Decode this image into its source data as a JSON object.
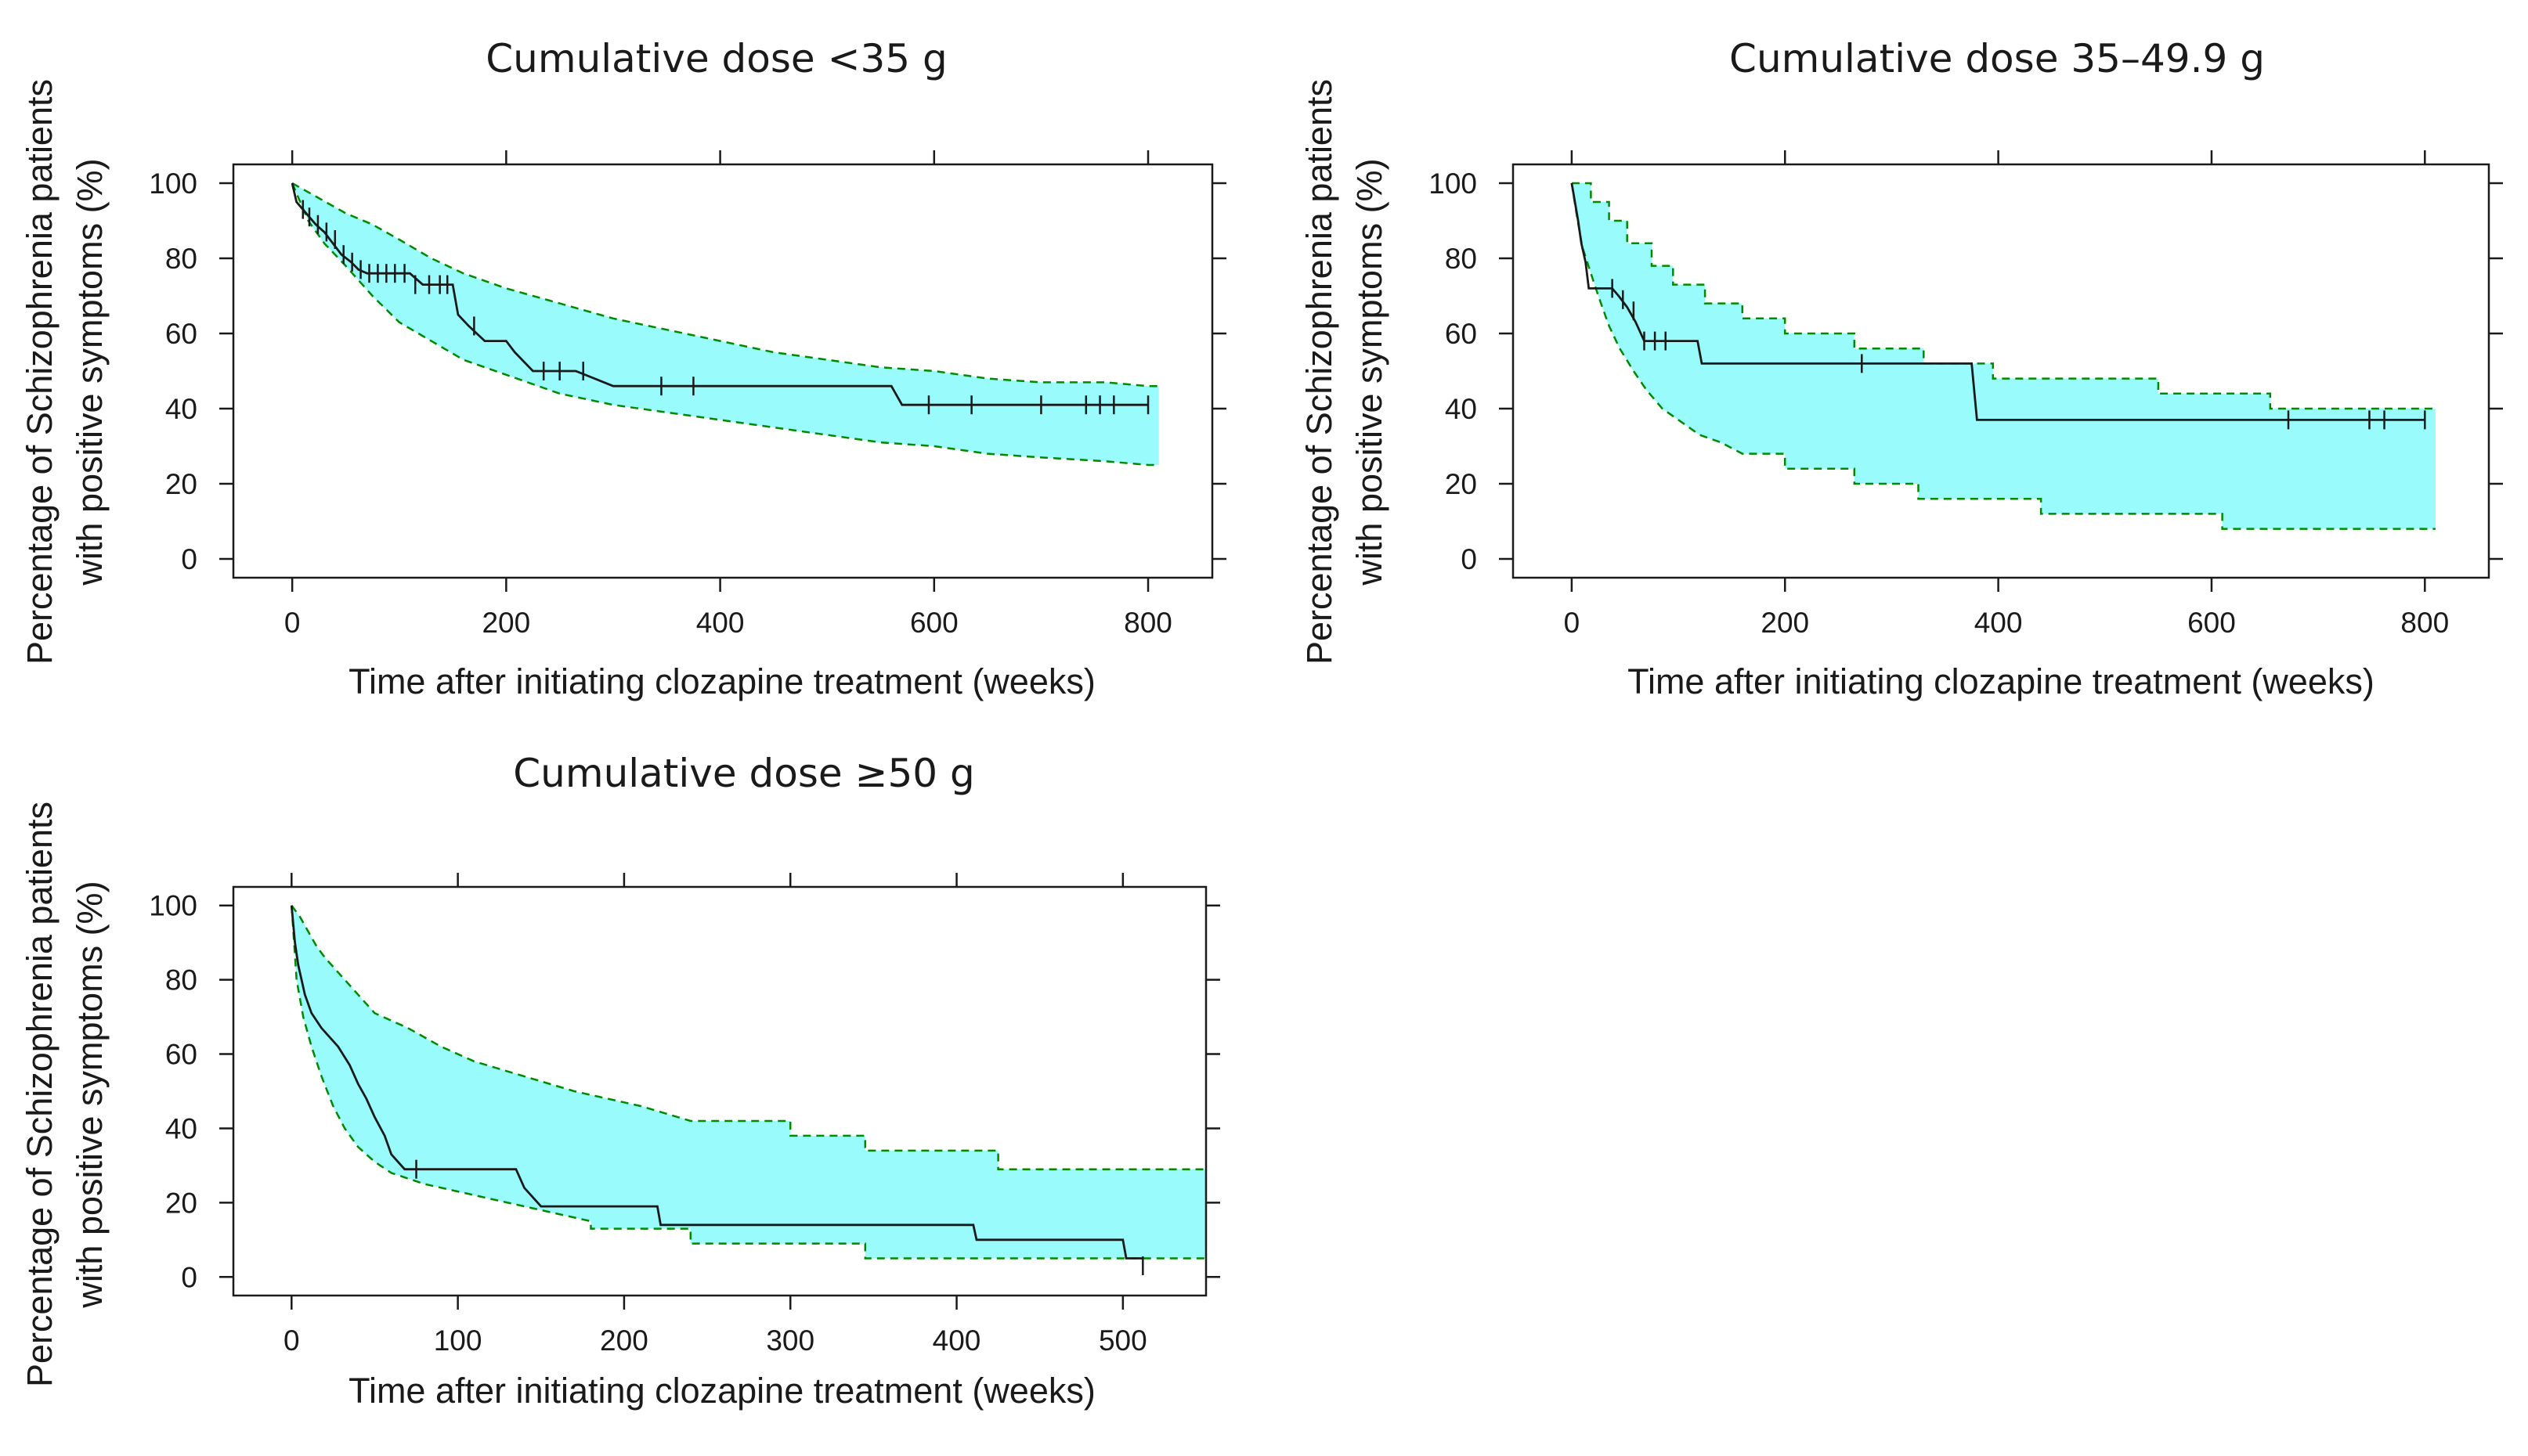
{
  "colors": {
    "band_fill": "#99fbfb",
    "band_edge": "#008a00",
    "line": "#1a1a1a",
    "frame": "#1a1a1a"
  },
  "chart_data": [
    {
      "type": "line",
      "title": "Cumulative dose <35 g",
      "xlabel": "Time after initiating clozapine treatment (weeks)",
      "ylabel_line1": "Percentage of Schizophrenia patients",
      "ylabel_line2": "with positive symptoms (%)",
      "xlim": [
        -55,
        860
      ],
      "ylim": [
        -5,
        105
      ],
      "x_ticks": [
        0,
        200,
        400,
        600,
        800
      ],
      "y_ticks": [
        0,
        20,
        40,
        60,
        80,
        100
      ],
      "survival": [
        [
          0,
          100
        ],
        [
          4,
          95
        ],
        [
          10,
          93
        ],
        [
          16,
          91
        ],
        [
          22,
          89
        ],
        [
          30,
          87
        ],
        [
          38,
          84
        ],
        [
          46,
          81
        ],
        [
          55,
          79
        ],
        [
          62,
          77
        ],
        [
          70,
          76
        ],
        [
          80,
          76
        ],
        [
          110,
          76
        ],
        [
          122,
          73
        ],
        [
          150,
          73
        ],
        [
          155,
          65
        ],
        [
          165,
          62
        ],
        [
          180,
          58
        ],
        [
          200,
          58
        ],
        [
          208,
          55
        ],
        [
          225,
          50
        ],
        [
          265,
          50
        ],
        [
          300,
          46
        ],
        [
          340,
          46
        ],
        [
          560,
          46
        ],
        [
          570,
          41
        ],
        [
          800,
          41
        ]
      ],
      "censored": [
        [
          10,
          93
        ],
        [
          16,
          91
        ],
        [
          24,
          89
        ],
        [
          32,
          87
        ],
        [
          40,
          85
        ],
        [
          48,
          81
        ],
        [
          56,
          79
        ],
        [
          64,
          77
        ],
        [
          72,
          76
        ],
        [
          80,
          76
        ],
        [
          88,
          76
        ],
        [
          96,
          76
        ],
        [
          105,
          76
        ],
        [
          115,
          73
        ],
        [
          128,
          73
        ],
        [
          138,
          73
        ],
        [
          145,
          73
        ],
        [
          170,
          62
        ],
        [
          235,
          50
        ],
        [
          250,
          50
        ],
        [
          272,
          50
        ],
        [
          345,
          46
        ],
        [
          375,
          46
        ],
        [
          595,
          41
        ],
        [
          635,
          41
        ],
        [
          700,
          41
        ],
        [
          742,
          41
        ],
        [
          755,
          41
        ],
        [
          768,
          41
        ],
        [
          800,
          41
        ]
      ],
      "upper": [
        [
          0,
          100
        ],
        [
          25,
          96
        ],
        [
          50,
          92
        ],
        [
          75,
          89
        ],
        [
          100,
          85
        ],
        [
          130,
          80
        ],
        [
          160,
          76
        ],
        [
          200,
          72
        ],
        [
          250,
          68
        ],
        [
          300,
          64
        ],
        [
          350,
          61
        ],
        [
          400,
          58
        ],
        [
          450,
          55
        ],
        [
          500,
          53
        ],
        [
          550,
          51
        ],
        [
          600,
          50
        ],
        [
          650,
          48
        ],
        [
          700,
          47
        ],
        [
          760,
          47
        ],
        [
          800,
          46
        ],
        [
          810,
          46
        ]
      ],
      "lower": [
        [
          0,
          100
        ],
        [
          15,
          90
        ],
        [
          30,
          84
        ],
        [
          50,
          78
        ],
        [
          75,
          70
        ],
        [
          100,
          63
        ],
        [
          130,
          58
        ],
        [
          160,
          53
        ],
        [
          200,
          49
        ],
        [
          250,
          44
        ],
        [
          300,
          41
        ],
        [
          350,
          39
        ],
        [
          400,
          37
        ],
        [
          450,
          35
        ],
        [
          500,
          33
        ],
        [
          550,
          31
        ],
        [
          600,
          30
        ],
        [
          650,
          28
        ],
        [
          700,
          27
        ],
        [
          760,
          26
        ],
        [
          800,
          25
        ],
        [
          810,
          25
        ]
      ]
    },
    {
      "type": "line",
      "title": "Cumulative dose 35–49.9 g",
      "xlabel": "Time after initiating clozapine treatment (weeks)",
      "ylabel_line1": "Percentage of Schizophrenia patients",
      "ylabel_line2": "with positive symptoms (%)",
      "xlim": [
        -55,
        860
      ],
      "ylim": [
        -5,
        105
      ],
      "x_ticks": [
        0,
        200,
        400,
        600,
        800
      ],
      "y_ticks": [
        0,
        20,
        40,
        60,
        80,
        100
      ],
      "survival": [
        [
          0,
          100
        ],
        [
          3,
          95
        ],
        [
          6,
          90
        ],
        [
          9,
          84
        ],
        [
          13,
          79
        ],
        [
          16,
          72
        ],
        [
          38,
          72
        ],
        [
          44,
          70
        ],
        [
          52,
          67
        ],
        [
          60,
          63
        ],
        [
          68,
          58
        ],
        [
          118,
          58
        ],
        [
          122,
          52
        ],
        [
          375,
          52
        ],
        [
          380,
          37
        ],
        [
          800,
          37
        ]
      ],
      "censored": [
        [
          38,
          72
        ],
        [
          48,
          69
        ],
        [
          58,
          66
        ],
        [
          68,
          58
        ],
        [
          78,
          58
        ],
        [
          88,
          58
        ],
        [
          272,
          52
        ],
        [
          672,
          37
        ],
        [
          748,
          37
        ],
        [
          762,
          37
        ],
        [
          800,
          37
        ]
      ],
      "upper": [
        [
          0,
          100
        ],
        [
          18,
          100
        ],
        [
          18,
          95
        ],
        [
          35,
          95
        ],
        [
          35,
          90
        ],
        [
          52,
          90
        ],
        [
          52,
          84
        ],
        [
          75,
          84
        ],
        [
          75,
          78
        ],
        [
          95,
          78
        ],
        [
          95,
          73
        ],
        [
          125,
          73
        ],
        [
          125,
          68
        ],
        [
          160,
          68
        ],
        [
          160,
          64
        ],
        [
          200,
          64
        ],
        [
          200,
          60
        ],
        [
          265,
          60
        ],
        [
          265,
          56
        ],
        [
          330,
          56
        ],
        [
          330,
          52
        ],
        [
          395,
          52
        ],
        [
          395,
          48
        ],
        [
          550,
          48
        ],
        [
          550,
          44
        ],
        [
          655,
          44
        ],
        [
          655,
          40
        ],
        [
          810,
          40
        ]
      ],
      "lower": [
        [
          0,
          100
        ],
        [
          5,
          91
        ],
        [
          10,
          83
        ],
        [
          18,
          76
        ],
        [
          25,
          70
        ],
        [
          35,
          62
        ],
        [
          45,
          56
        ],
        [
          58,
          50
        ],
        [
          70,
          45
        ],
        [
          85,
          40
        ],
        [
          100,
          37
        ],
        [
          120,
          33
        ],
        [
          140,
          31
        ],
        [
          160,
          28
        ],
        [
          200,
          28
        ],
        [
          200,
          24
        ],
        [
          265,
          24
        ],
        [
          265,
          20
        ],
        [
          325,
          20
        ],
        [
          325,
          16
        ],
        [
          440,
          16
        ],
        [
          440,
          12
        ],
        [
          610,
          12
        ],
        [
          610,
          8
        ],
        [
          810,
          8
        ]
      ]
    },
    {
      "type": "line",
      "title": "Cumulative dose ≥50 g",
      "xlabel": "Time after initiating clozapine treatment (weeks)",
      "ylabel_line1": "Percentage of Schizophrenia patients",
      "ylabel_line2": "with positive symptoms (%)",
      "xlim": [
        -35,
        550
      ],
      "ylim": [
        -5,
        105
      ],
      "x_ticks": [
        0,
        100,
        200,
        300,
        400,
        500
      ],
      "y_ticks": [
        0,
        20,
        40,
        60,
        80,
        100
      ],
      "survival": [
        [
          0,
          100
        ],
        [
          2,
          90
        ],
        [
          4,
          84
        ],
        [
          8,
          76
        ],
        [
          12,
          71
        ],
        [
          18,
          67
        ],
        [
          28,
          62
        ],
        [
          35,
          57
        ],
        [
          40,
          52
        ],
        [
          45,
          48
        ],
        [
          50,
          43
        ],
        [
          56,
          38
        ],
        [
          60,
          33
        ],
        [
          68,
          29
        ],
        [
          135,
          29
        ],
        [
          140,
          24
        ],
        [
          150,
          19
        ],
        [
          220,
          19
        ],
        [
          222,
          14
        ],
        [
          410,
          14
        ],
        [
          412,
          10
        ],
        [
          500,
          10
        ],
        [
          502,
          5
        ],
        [
          512,
          5
        ]
      ],
      "censored": [
        [
          75,
          29
        ],
        [
          512,
          3
        ]
      ],
      "upper": [
        [
          0,
          100
        ],
        [
          5,
          97
        ],
        [
          10,
          93
        ],
        [
          15,
          89
        ],
        [
          20,
          86
        ],
        [
          30,
          81
        ],
        [
          40,
          76
        ],
        [
          50,
          71
        ],
        [
          70,
          67
        ],
        [
          90,
          62
        ],
        [
          110,
          58
        ],
        [
          140,
          54
        ],
        [
          170,
          50
        ],
        [
          210,
          46
        ],
        [
          240,
          42
        ],
        [
          300,
          42
        ],
        [
          300,
          38
        ],
        [
          345,
          38
        ],
        [
          345,
          34
        ],
        [
          425,
          34
        ],
        [
          425,
          29
        ],
        [
          550,
          29
        ]
      ],
      "lower": [
        [
          0,
          100
        ],
        [
          3,
          80
        ],
        [
          7,
          70
        ],
        [
          12,
          62
        ],
        [
          18,
          54
        ],
        [
          25,
          46
        ],
        [
          32,
          40
        ],
        [
          40,
          35
        ],
        [
          50,
          31
        ],
        [
          60,
          28
        ],
        [
          80,
          25
        ],
        [
          100,
          23
        ],
        [
          130,
          20
        ],
        [
          160,
          17
        ],
        [
          180,
          15
        ],
        [
          180,
          13
        ],
        [
          240,
          13
        ],
        [
          240,
          9
        ],
        [
          345,
          9
        ],
        [
          345,
          5
        ],
        [
          550,
          5
        ]
      ]
    }
  ]
}
